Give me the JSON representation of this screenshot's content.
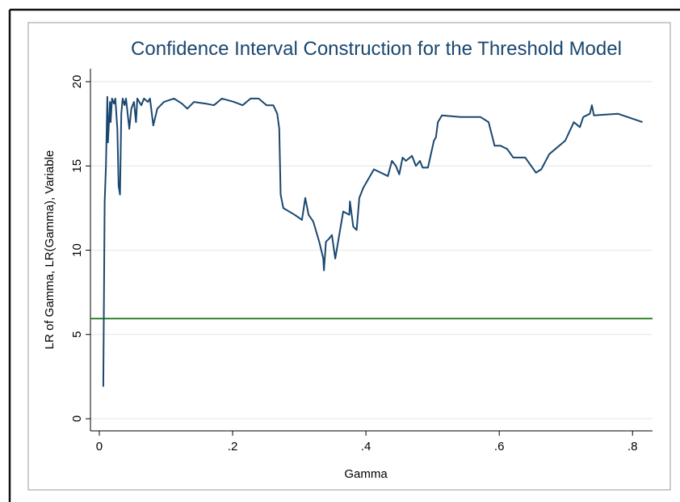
{
  "chart_data": {
    "type": "line",
    "title": "Confidence Interval Construction for the Threshold Model",
    "x_label": "Gamma",
    "y_label": "LR of Gamma, LR(Gamma), Variable",
    "xlim": [
      -0.0133,
      0.83
    ],
    "ylim": [
      -0.72,
      20.77
    ],
    "xticks": [
      0,
      {
        "value": 0.2,
        "label": ".2"
      },
      {
        "value": 0.4,
        "label": ".4"
      },
      {
        "value": 0.6,
        "label": ".6"
      },
      {
        "value": 0.8,
        "label": ".8"
      }
    ],
    "yticks": [
      0,
      5,
      10,
      15,
      20
    ],
    "grid": true,
    "reference_line": {
      "value": 5.94,
      "color": "#1a7a1a"
    },
    "series": [
      {
        "color": "#1a476f",
        "x": [
          0.006,
          0.008,
          0.01,
          0.012,
          0.013,
          0.016,
          0.017,
          0.019,
          0.022,
          0.024,
          0.027,
          0.029,
          0.031,
          0.033,
          0.035,
          0.038,
          0.04,
          0.045,
          0.048,
          0.052,
          0.055,
          0.057,
          0.063,
          0.067,
          0.073,
          0.076,
          0.081,
          0.087,
          0.097,
          0.112,
          0.124,
          0.132,
          0.142,
          0.16,
          0.172,
          0.184,
          0.202,
          0.215,
          0.227,
          0.239,
          0.251,
          0.261,
          0.267,
          0.27,
          0.272,
          0.276,
          0.293,
          0.304,
          0.309,
          0.314,
          0.321,
          0.33,
          0.336,
          0.337,
          0.34,
          0.345,
          0.349,
          0.354,
          0.366,
          0.375,
          0.376,
          0.381,
          0.386,
          0.39,
          0.396,
          0.412,
          0.433,
          0.439,
          0.445,
          0.45,
          0.455,
          0.46,
          0.469,
          0.475,
          0.481,
          0.485,
          0.493,
          0.502,
          0.505,
          0.508,
          0.514,
          0.542,
          0.572,
          0.584,
          0.593,
          0.602,
          0.612,
          0.621,
          0.639,
          0.655,
          0.663,
          0.675,
          0.699,
          0.712,
          0.721,
          0.726,
          0.736,
          0.739,
          0.742,
          0.778,
          0.815
        ],
        "values": [
          1.9,
          12.85,
          15,
          19.1,
          16.4,
          18.8,
          17.6,
          19,
          18.7,
          19,
          17.2,
          13.8,
          13.3,
          18.1,
          19,
          18.6,
          19,
          17.2,
          18.4,
          18.8,
          17.6,
          19,
          18.6,
          19,
          18.8,
          19,
          17.4,
          18.4,
          18.8,
          19,
          18.7,
          18.4,
          18.8,
          18.7,
          18.6,
          19,
          18.8,
          18.6,
          19,
          19,
          18.6,
          18.6,
          18.1,
          17.2,
          13.3,
          12.5,
          12.1,
          11.8,
          13.1,
          12.1,
          11.7,
          10.5,
          9.5,
          8.8,
          10.5,
          10.7,
          10.9,
          9.5,
          12.3,
          12.1,
          12.9,
          11.4,
          11.2,
          13.1,
          13.7,
          14.8,
          14.4,
          15.3,
          15,
          14.5,
          15.5,
          15.3,
          15.6,
          15,
          15.3,
          14.9,
          14.9,
          16.5,
          16.7,
          17.6,
          18,
          17.9,
          17.9,
          17.6,
          16.2,
          16.2,
          16,
          15.5,
          15.5,
          14.6,
          14.8,
          15.7,
          16.5,
          17.6,
          17.3,
          17.9,
          18.1,
          18.6,
          18,
          18.1,
          17.6
        ]
      }
    ]
  }
}
